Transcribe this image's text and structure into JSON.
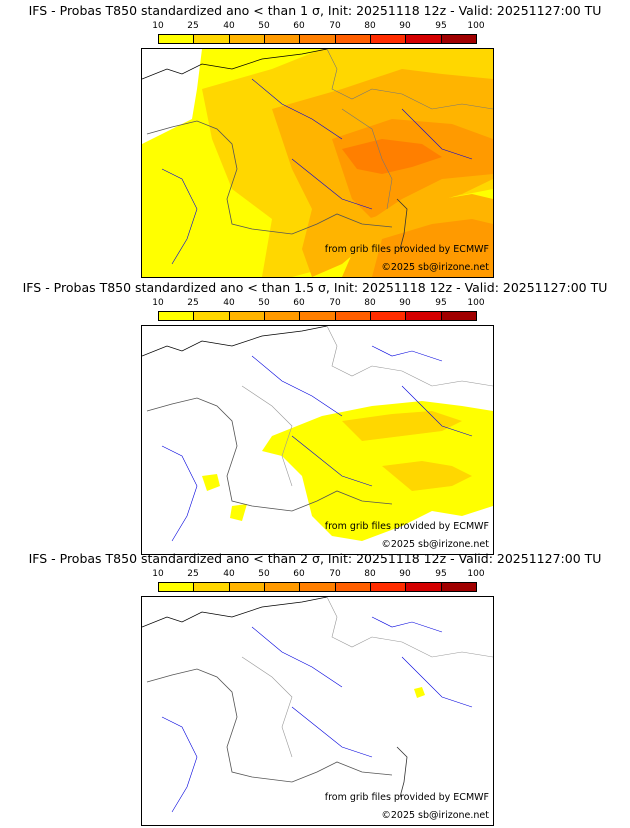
{
  "legend_colors": [
    "#ffff00",
    "#ffd700",
    "#ffb400",
    "#ff9a00",
    "#ff7f00",
    "#ff5f00",
    "#ff2d00",
    "#d40000",
    "#a00000",
    "#6b0000"
  ],
  "legend_ticks": [
    "10",
    "25",
    "40",
    "50",
    "60",
    "70",
    "80",
    "90",
    "95",
    "100"
  ],
  "panels": [
    {
      "title": "IFS - Probas T850  standardized ano < than 1 σ, Init: 20251118 12z - Valid: 20251127:00 TU",
      "credit_data": "from grib files provided by ECMWF",
      "credit_copy": "©2025 sb@irizone.net",
      "coverage": "high"
    },
    {
      "title": "IFS - Probas T850  standardized ano < than 1.5 σ, Init: 20251118 12z - Valid: 20251127:00 TU",
      "credit_data": "from grib files provided by ECMWF",
      "credit_copy": "©2025 sb@irizone.net",
      "coverage": "medium"
    },
    {
      "title": "IFS - Probas T850  standardized ano < than 2 σ, Init: 20251118 12z - Valid: 20251127:00 TU",
      "credit_data": "from grib files provided by ECMWF",
      "credit_copy": "©2025 sb@irizone.net",
      "coverage": "low"
    }
  ]
}
